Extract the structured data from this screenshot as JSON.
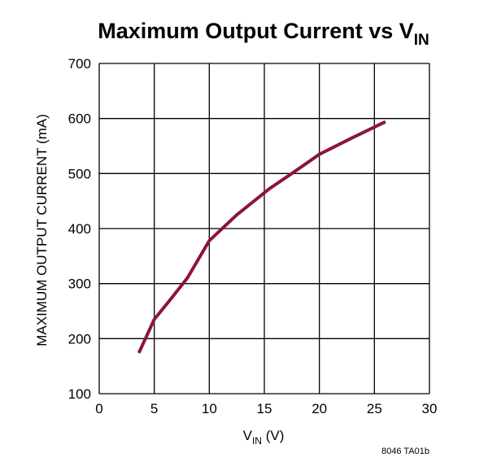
{
  "chart_data": {
    "type": "line",
    "title": "Maximum Output Current vs V",
    "title_subscript": "IN",
    "xlabel": "V",
    "xlabel_subscript": "IN",
    "xlabel_suffix": " (V)",
    "ylabel": "MAXIMUM OUTPUT CURRENT (mA)",
    "xlim": [
      0,
      30
    ],
    "ylim": [
      100,
      700
    ],
    "xticks": [
      0,
      5,
      10,
      15,
      20,
      25,
      30
    ],
    "yticks": [
      100,
      200,
      300,
      400,
      500,
      600,
      700
    ],
    "grid": true,
    "line_color": "#8b1538",
    "series": [
      {
        "x": [
          3.6,
          4.2,
          5.0,
          6.5,
          8.0,
          10.0,
          12.5,
          15.5,
          17.5,
          20.0,
          23.0,
          26.0
        ],
        "y": [
          174,
          200,
          235,
          272,
          310,
          378,
          425,
          473,
          500,
          535,
          565,
          594
        ]
      }
    ]
  },
  "footnote": "8046 TA01b"
}
